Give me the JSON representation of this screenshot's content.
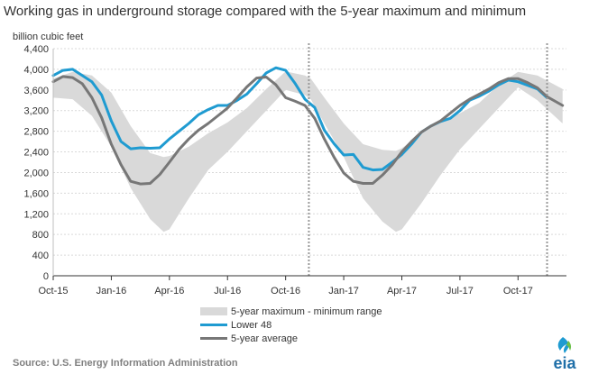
{
  "title": "Working gas in underground  storage compared with the 5-year maximum and minimum",
  "unit_label": "billion cubic feet",
  "source": "Source:  U.S. Energy Information Administration",
  "logo_text": "eia",
  "chart_data": {
    "type": "line",
    "title": "Working gas in underground  storage compared with the 5-year maximum and minimum",
    "ylabel": "billion cubic feet",
    "xlabel": "",
    "ylim": [
      0,
      4400
    ],
    "xlim": [
      0,
      26.5
    ],
    "yticks": [
      0,
      400,
      800,
      1200,
      1600,
      2000,
      2400,
      2800,
      3200,
      3600,
      4000,
      4400
    ],
    "ytick_labels": [
      "0",
      "400",
      "800",
      "1,200",
      "1,600",
      "2,000",
      "2,400",
      "2,800",
      "3,200",
      "3,600",
      "4,000",
      "4,400"
    ],
    "xticks": [
      0,
      3,
      6,
      9,
      12,
      15,
      18,
      21,
      24
    ],
    "xtick_labels": [
      "Oct-15",
      "Jan-16",
      "Apr-16",
      "Jul-16",
      "Oct-16",
      "Jan-17",
      "Apr-17",
      "Jul-17",
      "Oct-17"
    ],
    "x_unit": "months since October 2015",
    "grid": true,
    "legend_position": "bottom",
    "vertical_markers": [
      13.2,
      25.5
    ],
    "series": [
      {
        "name": "5-year maximum - minimum range",
        "kind": "range",
        "color": "#d9d9d9",
        "x": [
          0,
          1,
          2,
          3,
          4,
          5,
          5.7,
          6,
          7,
          8,
          9,
          10,
          11,
          12,
          13,
          13.3,
          14,
          15,
          16,
          17,
          17.7,
          18,
          19,
          20,
          21,
          22,
          23,
          24,
          25,
          26.3
        ],
        "max": [
          3820,
          3950,
          3880,
          3550,
          2900,
          2380,
          2300,
          2320,
          2500,
          2760,
          2970,
          3250,
          3620,
          3960,
          3880,
          3820,
          3450,
          2950,
          2550,
          2440,
          2420,
          2470,
          2760,
          3000,
          3150,
          3350,
          3700,
          3950,
          3880,
          3620
        ],
        "min": [
          3450,
          3420,
          3100,
          2500,
          1700,
          1100,
          850,
          900,
          1500,
          2050,
          2400,
          2800,
          3200,
          3600,
          3500,
          3420,
          2950,
          2300,
          1500,
          1050,
          850,
          900,
          1400,
          1950,
          2450,
          2850,
          3250,
          3650,
          3400,
          2950
        ]
      },
      {
        "name": "Lower 48",
        "kind": "line",
        "color": "#1f9bd1",
        "x": [
          0,
          0.5,
          1,
          1.5,
          2,
          2.5,
          3,
          3.5,
          4,
          4.5,
          5,
          5.5,
          6,
          6.5,
          7,
          7.5,
          8,
          8.5,
          9,
          9.5,
          10,
          10.5,
          11,
          11.5,
          12,
          12.5,
          13,
          13.5,
          14,
          14.5,
          15,
          15.5,
          16,
          16.5,
          17,
          17.5,
          18,
          18.5,
          19,
          19.5,
          20,
          20.5,
          21,
          21.5,
          22,
          22.5,
          23,
          23.5,
          24,
          24.5,
          25,
          25.5
        ],
        "values": [
          3880,
          3980,
          4000,
          3880,
          3760,
          3500,
          3000,
          2600,
          2460,
          2480,
          2470,
          2480,
          2650,
          2800,
          2950,
          3120,
          3220,
          3300,
          3300,
          3400,
          3520,
          3720,
          3930,
          4030,
          3980,
          3720,
          3420,
          3260,
          2820,
          2560,
          2340,
          2350,
          2100,
          2050,
          2060,
          2200,
          2350,
          2550,
          2780,
          2900,
          2990,
          3050,
          3200,
          3400,
          3480,
          3580,
          3700,
          3790,
          3760,
          3690,
          3620,
          3450
        ]
      },
      {
        "name": "5-year average",
        "kind": "line",
        "color": "#777777",
        "x": [
          0,
          0.5,
          1,
          1.5,
          2,
          2.5,
          3,
          3.5,
          4,
          4.5,
          5,
          5.5,
          6,
          6.5,
          7,
          7.5,
          8,
          8.5,
          9,
          9.5,
          10,
          10.5,
          11,
          11.5,
          12,
          12.5,
          13,
          13.5,
          14,
          14.5,
          15,
          15.5,
          16,
          16.5,
          17,
          17.5,
          18,
          18.5,
          19,
          19.5,
          20,
          20.5,
          21,
          21.5,
          22,
          22.5,
          23,
          23.5,
          24,
          24.5,
          25,
          25.5,
          26.3
        ],
        "values": [
          3760,
          3860,
          3840,
          3720,
          3450,
          3060,
          2550,
          2150,
          1830,
          1780,
          1790,
          1960,
          2200,
          2450,
          2650,
          2820,
          2950,
          3100,
          3250,
          3450,
          3660,
          3830,
          3850,
          3700,
          3450,
          3380,
          3300,
          3050,
          2650,
          2300,
          1990,
          1830,
          1790,
          1790,
          1950,
          2150,
          2400,
          2600,
          2780,
          2900,
          3000,
          3150,
          3300,
          3420,
          3520,
          3620,
          3740,
          3820,
          3820,
          3740,
          3640,
          3470,
          3300
        ]
      }
    ]
  }
}
